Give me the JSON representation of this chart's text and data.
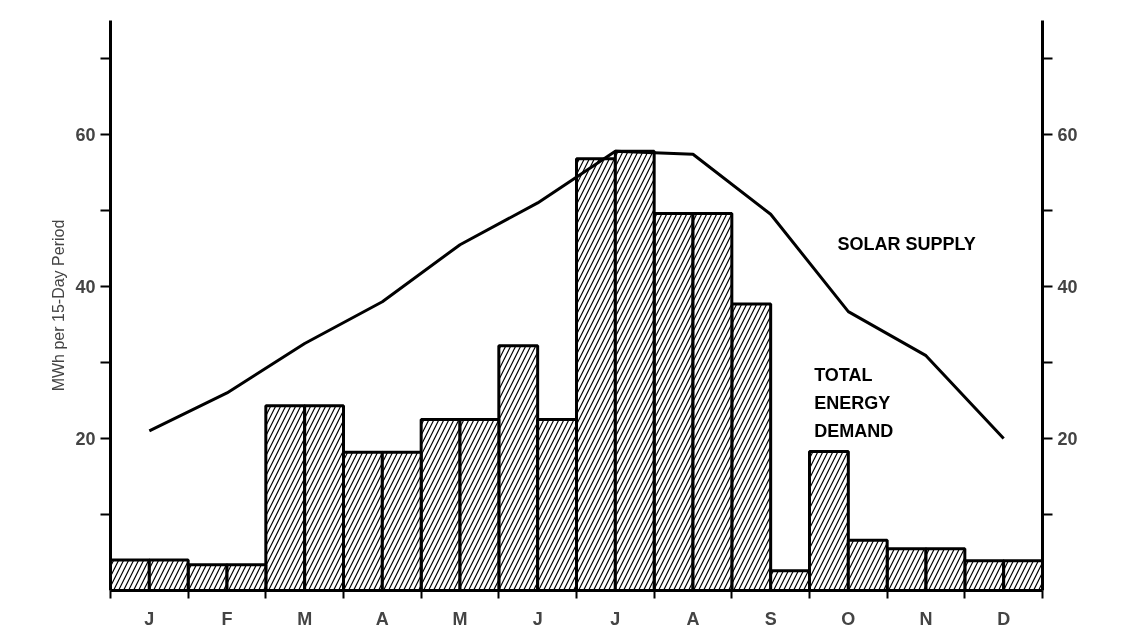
{
  "chart_data": {
    "type": "bar",
    "ylabel": "MWh per 15-Day Period",
    "categories": [
      "J",
      "F",
      "M",
      "A",
      "M",
      "J",
      "J",
      "A",
      "S",
      "O",
      "N",
      "D"
    ],
    "ylim": [
      0,
      75
    ],
    "yticks": [
      {
        "value": 10,
        "label": null
      },
      20,
      {
        "value": 30,
        "label": null
      },
      40,
      {
        "value": 50,
        "label": null
      },
      60,
      {
        "value": 70,
        "label": null
      }
    ],
    "y2lim": [
      0,
      75
    ],
    "y2ticks": [
      {
        "value": 10,
        "label": null
      },
      20,
      {
        "value": 30,
        "label": null
      },
      40,
      {
        "value": 50,
        "label": null
      },
      60,
      {
        "value": 70,
        "label": null
      }
    ],
    "grid": false,
    "series": [
      {
        "name": "TOTAL ENERGY DEMAND",
        "color": "#000000",
        "values": [
          4,
          3.4,
          24.3,
          18.2,
          22.5,
          32.2,
          56.8,
          49.6,
          37.7,
          18.3,
          5.5,
          3.9
        ]
      },
      {
        "color": "#000000",
        "values": [
          4,
          3.4,
          24.3,
          18.2,
          22.5,
          22.5,
          57.8,
          49.6,
          2.6,
          6.6,
          5.5,
          3.9
        ]
      },
      {
        "name": "SOLAR SUPPLY",
        "type": "line",
        "color": "#000000",
        "values": [
          21,
          26,
          32.5,
          38,
          45.5,
          51,
          57.8,
          57.4,
          49.5,
          36.7,
          30.9,
          20
        ]
      }
    ]
  }
}
